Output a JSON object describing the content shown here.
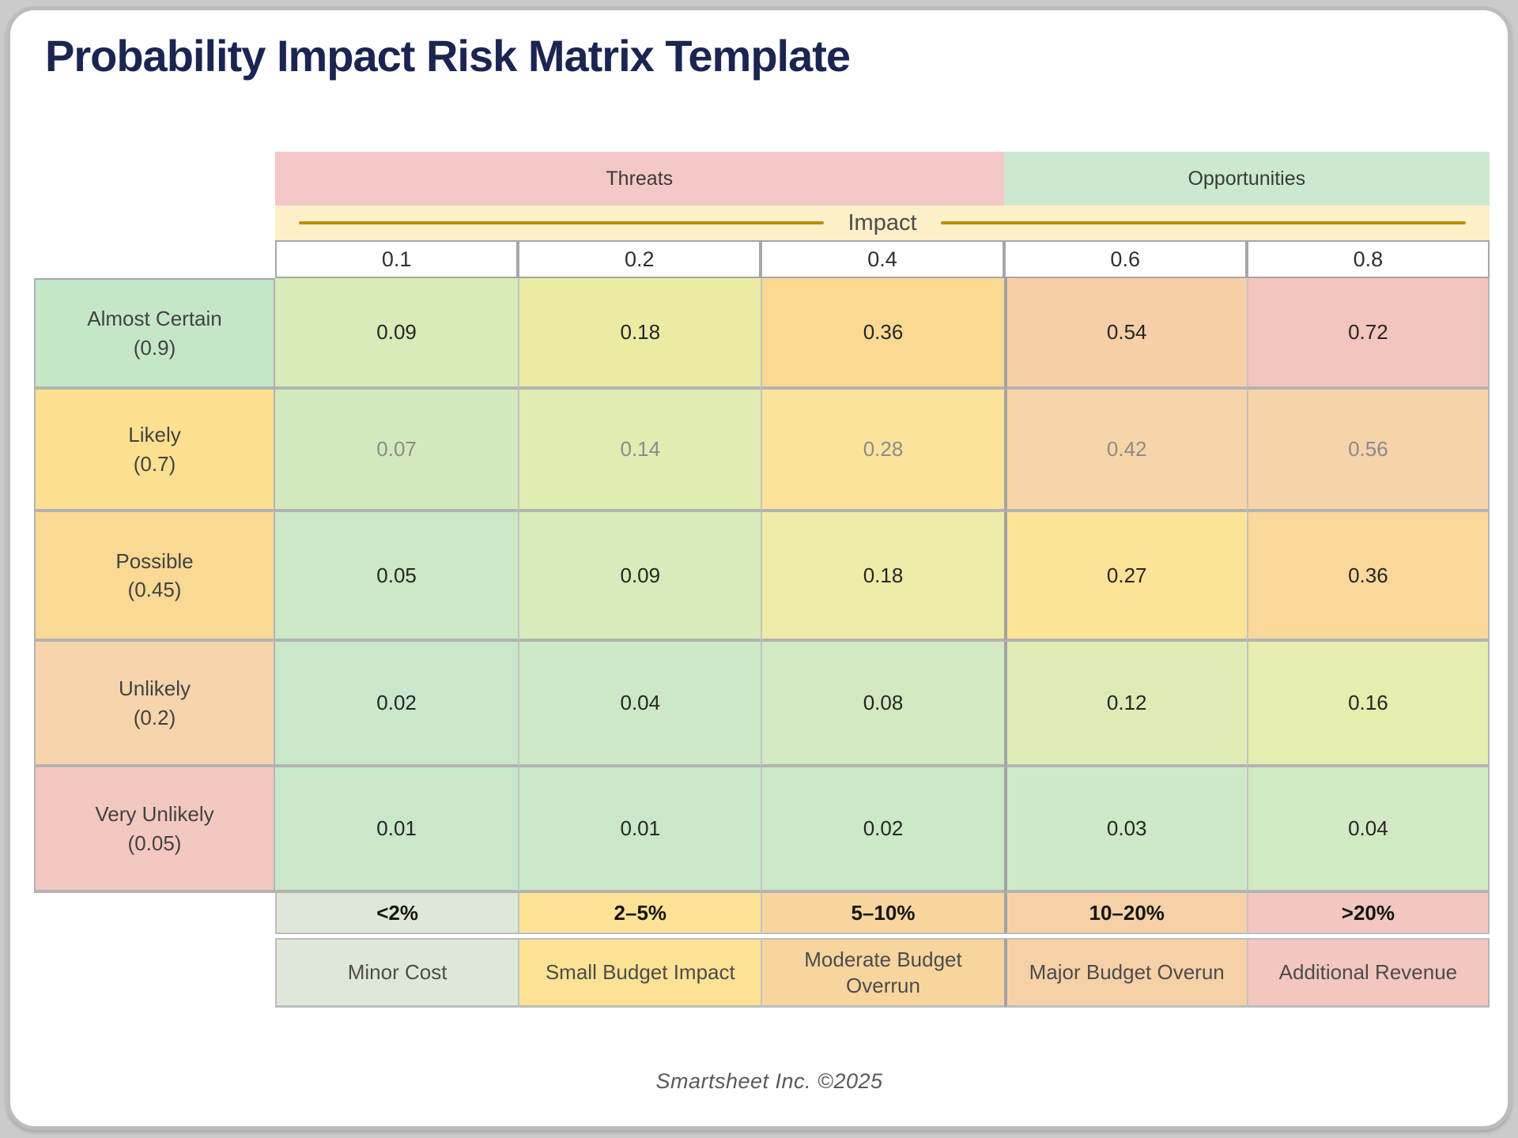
{
  "page": {
    "title": "Probability Impact Risk Matrix Template",
    "footer": "Smartsheet Inc. ©2025"
  },
  "matrix": {
    "top_headers": [
      {
        "label": "Threats",
        "color": "#F4C8C6",
        "columns_spanned": 3
      },
      {
        "label": "Opportunities",
        "color": "#CBE9CE",
        "columns_spanned": 2
      }
    ],
    "impact_banner": {
      "label": "Impact",
      "bg": "#FCF0C8",
      "line_color": "#BE8F06"
    },
    "impact_values": [
      "0.1",
      "0.2",
      "0.4",
      "0.6",
      "0.8"
    ],
    "probability_rows": [
      {
        "label": "Almost Certain",
        "probability": "(0.9)",
        "header_color": "#C4E7C8",
        "value_color": "#262626",
        "cells": [
          {
            "value": "0.09",
            "color": "#D8EBB8"
          },
          {
            "value": "0.18",
            "color": "#EBECA3"
          },
          {
            "value": "0.36",
            "color": "#FBD992"
          },
          {
            "value": "0.54",
            "color": "#F7CFA7"
          },
          {
            "value": "0.72",
            "color": "#F3C5BE"
          }
        ]
      },
      {
        "label": "Likely",
        "probability": "(0.7)",
        "header_color": "#FBE18F",
        "value_color": "#8B8B8B",
        "cells": [
          {
            "value": "0.07",
            "color": "#D2E9BE"
          },
          {
            "value": "0.14",
            "color": "#E0ECB0"
          },
          {
            "value": "0.28",
            "color": "#FBE39C"
          },
          {
            "value": "0.42",
            "color": "#F8D5A8"
          },
          {
            "value": "0.56",
            "color": "#F7D3AA"
          }
        ]
      },
      {
        "label": "Possible",
        "probability": "(0.45)",
        "header_color": "#FAD994",
        "value_color": "#262626",
        "cells": [
          {
            "value": "0.05",
            "color": "#CCE8C4"
          },
          {
            "value": "0.09",
            "color": "#D9EBBA"
          },
          {
            "value": "0.18",
            "color": "#ECECA6"
          },
          {
            "value": "0.27",
            "color": "#FBE398"
          },
          {
            "value": "0.36",
            "color": "#FAD899"
          }
        ]
      },
      {
        "label": "Unlikely",
        "probability": "(0.2)",
        "header_color": "#F6D5AC",
        "value_color": "#262626",
        "cells": [
          {
            "value": "0.02",
            "color": "#C9E7CA"
          },
          {
            "value": "0.04",
            "color": "#CDE8C5"
          },
          {
            "value": "0.08",
            "color": "#D3E9C1"
          },
          {
            "value": "0.12",
            "color": "#DEEBB5"
          },
          {
            "value": "0.16",
            "color": "#E6EDAE"
          }
        ]
      },
      {
        "label": "Very Unlikely",
        "probability": "(0.05)",
        "header_color": "#F3C8C1",
        "value_color": "#262626",
        "cells": [
          {
            "value": "0.01",
            "color": "#C8E7CB"
          },
          {
            "value": "0.01",
            "color": "#C9E8C9"
          },
          {
            "value": "0.02",
            "color": "#CBE8C7"
          },
          {
            "value": "0.03",
            "color": "#CEE9C6"
          },
          {
            "value": "0.04",
            "color": "#D1EAC4"
          }
        ]
      }
    ],
    "impact_percent_row": [
      {
        "label": "<2%",
        "color": "#DFE8D8"
      },
      {
        "label": "2–5%",
        "color": "#FCE294"
      },
      {
        "label": "5–10%",
        "color": "#F9D59E"
      },
      {
        "label": "10–20%",
        "color": "#F7D1A6"
      },
      {
        "label": ">20%",
        "color": "#F3C6C0"
      }
    ],
    "impact_label_row": [
      {
        "label": "Minor Cost",
        "color": "#DFE8D8"
      },
      {
        "label": "Small Budget Impact",
        "color": "#FCE294"
      },
      {
        "label": "Moderate Budget Overrun",
        "color": "#F9D59E"
      },
      {
        "label": "Major Budget Overun",
        "color": "#F7D1A6"
      },
      {
        "label": "Additional Revenue",
        "color": "#F3C6C0"
      }
    ]
  }
}
